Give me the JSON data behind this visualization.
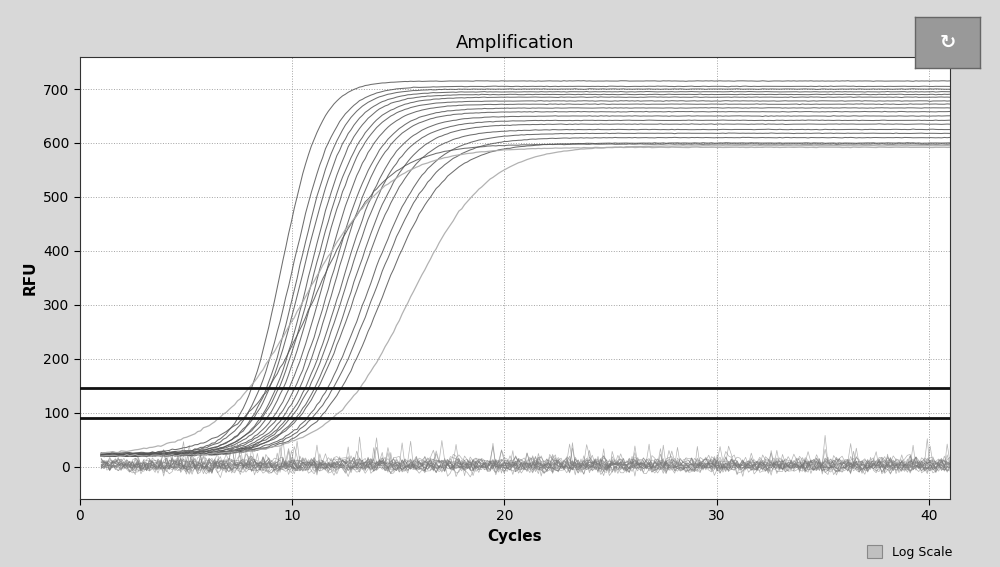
{
  "title": "Amplification",
  "xlabel": "Cycles",
  "ylabel": "RFU",
  "xlim": [
    0,
    41
  ],
  "ylim": [
    -60,
    760
  ],
  "yticks": [
    0,
    100,
    200,
    300,
    400,
    500,
    600,
    700
  ],
  "xticks": [
    0,
    10,
    20,
    30,
    40
  ],
  "threshold_line1": 145,
  "threshold_line2": 90,
  "background_color": "#d8d8d8",
  "plot_bg_color": "#ffffff",
  "legend_label": "Log Scale",
  "title_fontsize": 13,
  "axis_label_fontsize": 11,
  "tick_fontsize": 10,
  "sigmoid_curves": [
    {
      "mid": 9.5,
      "steep": 1.1,
      "ymax": 715,
      "ymin": 25
    },
    {
      "mid": 10.0,
      "steep": 1.0,
      "ymax": 705,
      "ymin": 24
    },
    {
      "mid": 10.3,
      "steep": 1.0,
      "ymax": 700,
      "ymin": 23
    },
    {
      "mid": 10.5,
      "steep": 0.95,
      "ymax": 695,
      "ymin": 23
    },
    {
      "mid": 10.8,
      "steep": 0.95,
      "ymax": 690,
      "ymin": 22
    },
    {
      "mid": 11.0,
      "steep": 0.9,
      "ymax": 685,
      "ymin": 22
    },
    {
      "mid": 11.2,
      "steep": 0.9,
      "ymax": 678,
      "ymin": 22
    },
    {
      "mid": 11.5,
      "steep": 0.88,
      "ymax": 672,
      "ymin": 21
    },
    {
      "mid": 11.8,
      "steep": 0.85,
      "ymax": 665,
      "ymin": 21
    },
    {
      "mid": 12.0,
      "steep": 0.85,
      "ymax": 658,
      "ymin": 20
    },
    {
      "mid": 12.3,
      "steep": 0.82,
      "ymax": 650,
      "ymin": 20
    },
    {
      "mid": 12.5,
      "steep": 0.8,
      "ymax": 642,
      "ymin": 20
    },
    {
      "mid": 12.8,
      "steep": 0.78,
      "ymax": 635,
      "ymin": 20
    },
    {
      "mid": 13.0,
      "steep": 0.75,
      "ymax": 625,
      "ymin": 20
    },
    {
      "mid": 13.5,
      "steep": 0.72,
      "ymax": 618,
      "ymin": 20
    },
    {
      "mid": 13.8,
      "steep": 0.7,
      "ymax": 610,
      "ymin": 20
    },
    {
      "mid": 14.2,
      "steep": 0.68,
      "ymax": 600,
      "ymin": 20
    },
    {
      "mid": 11.0,
      "steep": 0.6,
      "ymax": 598,
      "ymin": 20
    },
    {
      "mid": 15.5,
      "steep": 0.55,
      "ymax": 595,
      "ymin": 20
    },
    {
      "mid": 10.5,
      "steep": 0.5,
      "ymax": 592,
      "ymin": 20
    }
  ]
}
